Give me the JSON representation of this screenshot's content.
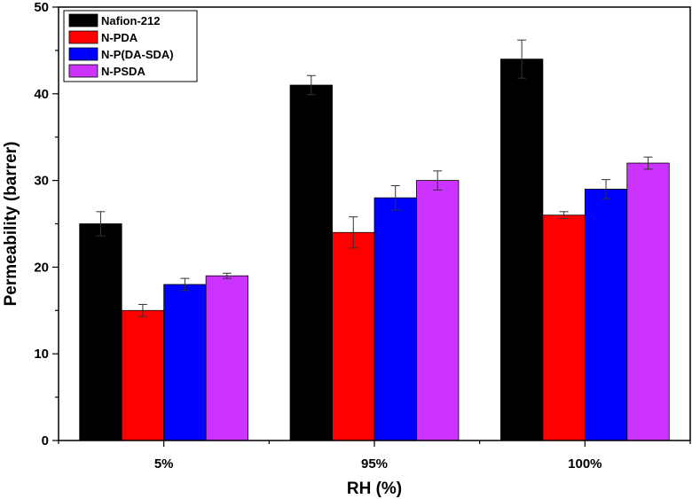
{
  "chart_data": {
    "type": "bar",
    "title": "",
    "xlabel": "RH (%)",
    "ylabel": "Permeability (barrer)",
    "categories": [
      "5%",
      "95%",
      "100%"
    ],
    "ylim": [
      0,
      50
    ],
    "yticks": [
      0,
      10,
      20,
      30,
      40,
      50
    ],
    "grid": false,
    "legend_position": "top-left",
    "series": [
      {
        "name": "Nafion-212",
        "color": "#000000",
        "values": [
          25,
          41,
          44
        ],
        "errors": [
          1.4,
          1.1,
          2.2
        ]
      },
      {
        "name": "N-PDA",
        "color": "#ff0000",
        "values": [
          15,
          24,
          26
        ],
        "errors": [
          0.7,
          1.8,
          0.4
        ]
      },
      {
        "name": "N-P(DA-SDA)",
        "color": "#0000ff",
        "values": [
          18,
          28,
          29
        ],
        "errors": [
          0.7,
          1.4,
          1.1
        ]
      },
      {
        "name": "N-PSDA",
        "color": "#cc33ff",
        "values": [
          19,
          30,
          32
        ],
        "errors": [
          0.3,
          1.1,
          0.7
        ]
      }
    ]
  }
}
